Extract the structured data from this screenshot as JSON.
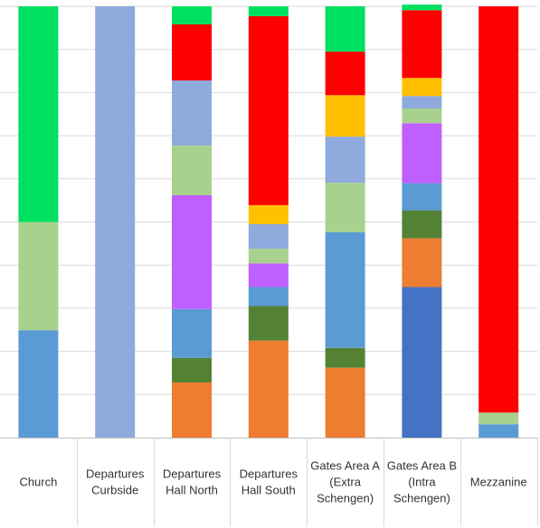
{
  "chart_data": {
    "type": "bar",
    "stacked": true,
    "stack_mode": "percent",
    "title": "",
    "xlabel": "",
    "ylabel": "",
    "ylim": [
      0,
      100
    ],
    "grid": true,
    "legend": "none",
    "categories": [
      "Church",
      "Departures Curbside",
      "Departures Hall North",
      "Departures Hall South",
      "Gates Area A (Extra Schengen)",
      "Gates Area B (Intra Schengen)",
      "Mezzanine"
    ],
    "category_lines": [
      [
        "Church"
      ],
      [
        "Departures",
        "Curbside"
      ],
      [
        "Departures",
        "Hall North"
      ],
      [
        "Departures",
        "Hall South"
      ],
      [
        "Gates Area A",
        "(Extra",
        "Schengen)"
      ],
      [
        "Gates Area B",
        "(Intra",
        "Schengen)"
      ],
      [
        "Mezzanine"
      ]
    ],
    "series": [
      {
        "color": "#4472C4",
        "values": [
          0,
          0,
          0,
          0,
          0,
          34.9,
          0
        ]
      },
      {
        "color": "#ED7D31",
        "values": [
          0,
          0,
          12.8,
          22.5,
          16.2,
          11.3,
          0
        ]
      },
      {
        "color": "#548235",
        "values": [
          0,
          0,
          5.7,
          8.0,
          4.6,
          6.5,
          0
        ]
      },
      {
        "color": "#5B9BD5",
        "values": [
          24.9,
          0,
          11.3,
          4.4,
          26.8,
          6.3,
          3.1
        ]
      },
      {
        "color": "#BF5FFF",
        "values": [
          0,
          0,
          26.4,
          5.5,
          0,
          13.9,
          0
        ]
      },
      {
        "color": "#A9D18E",
        "values": [
          25.1,
          0,
          11.5,
          3.4,
          11.5,
          3.4,
          2.7
        ]
      },
      {
        "color": "#8FAADC",
        "values": [
          0,
          100,
          15.1,
          5.7,
          10.7,
          2.9,
          0
        ]
      },
      {
        "color": "#FFC000",
        "values": [
          0,
          0,
          0,
          4.4,
          9.6,
          4.2,
          0
        ]
      },
      {
        "color": "#FF0000",
        "values": [
          0,
          0,
          13.0,
          43.8,
          10.1,
          15.7,
          94.2
        ]
      },
      {
        "color": "#00E060",
        "values": [
          50.0,
          0,
          4.2,
          2.3,
          10.5,
          1.3,
          0
        ]
      }
    ]
  }
}
